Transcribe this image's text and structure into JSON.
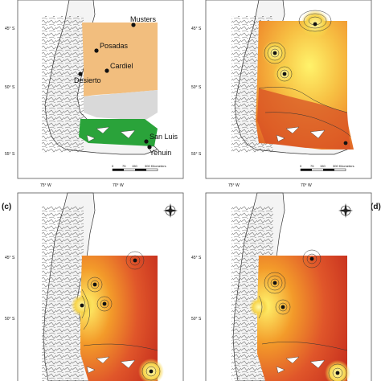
{
  "panels": [
    {
      "id": "a",
      "tag": "",
      "sites": [
        {
          "name": "Musters"
        },
        {
          "name": "Posadas"
        },
        {
          "name": "Cardiel"
        },
        {
          "name": "Desierto"
        },
        {
          "name": "San Luis"
        },
        {
          "name": "Yehuin"
        }
      ],
      "lat_ticks": [
        "45° S",
        "50° S",
        "55° S"
      ],
      "lon_ticks": [
        "75° W",
        "70° W"
      ],
      "scale_ticks": [
        "0",
        "75",
        "150",
        "300 Kilometers"
      ],
      "region_colors": {
        "north": "#f2be7e",
        "middle": "#d9d9d9",
        "south": "#2aa33a"
      }
    },
    {
      "id": "b",
      "tag": "",
      "lat_ticks": [
        "45° S",
        "50° S",
        "55° S"
      ],
      "lon_ticks": [
        "75° W",
        "70° W"
      ],
      "scale_ticks": [
        "0",
        "75",
        "150",
        "300 Kilometers"
      ]
    },
    {
      "id": "c",
      "tag": "(c)",
      "lat_ticks": [
        "45° S",
        "50° S"
      ],
      "lon_ticks": []
    },
    {
      "id": "d",
      "tag": "(d)",
      "lat_ticks": [
        "45° S",
        "50° S"
      ],
      "lon_ticks": []
    }
  ],
  "colors": {
    "ocean": "#ffffff",
    "land_outline": "#222222",
    "heat_low": "#fff36b",
    "heat_mid": "#f39b2a",
    "heat_high": "#c8321f"
  }
}
